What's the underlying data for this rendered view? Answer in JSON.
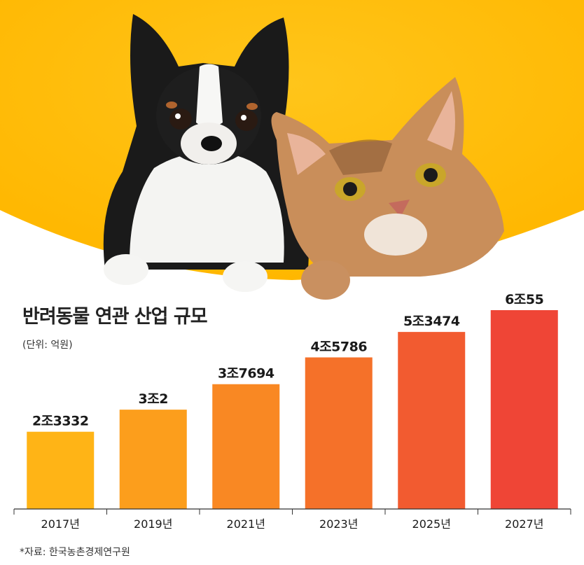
{
  "header": {
    "title": "반려동물 연관 산업 규모",
    "unit": "(단위: 억원)"
  },
  "footer": {
    "source": "*자료: 한국농촌경제연구원"
  },
  "colors": {
    "background_top": "#FFBC00",
    "bar_start": "#FFB416",
    "bar_end": "#EF4536"
  },
  "illustration": {
    "subject": "chihuahua-and-tabby-cat-photo"
  },
  "chart_data": {
    "type": "bar",
    "categories": [
      "2017년",
      "2019년",
      "2021년",
      "2023년",
      "2025년",
      "2027년"
    ],
    "values": [
      23332,
      30002,
      37694,
      45786,
      53474,
      60055
    ],
    "data_labels": [
      "2조3332",
      "3조2",
      "3조7694",
      "4조5786",
      "5조3474",
      "6조55"
    ],
    "title": "반려동물 연관 산업 규모",
    "ylabel": "",
    "ylim": [
      0,
      60055
    ],
    "grid": false,
    "legend": "none"
  }
}
